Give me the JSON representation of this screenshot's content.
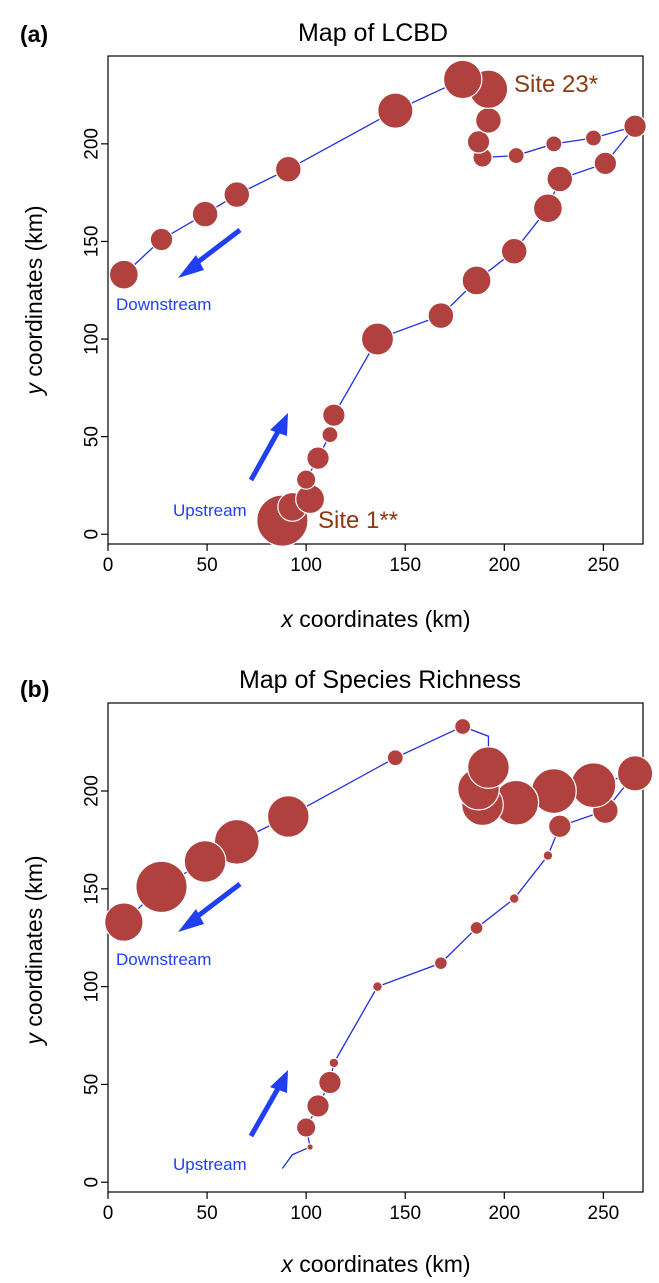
{
  "colors": {
    "point": "#b0413e",
    "line": "#1f2fe0",
    "arrow": "#1f3ff0",
    "site_label": "#8b3a14",
    "direction_label": "#1f3ff0"
  },
  "chart_data": [
    {
      "type": "scatter",
      "panel": "(a)",
      "title": "Map of LCBD",
      "xlabel_italic": "x",
      "xlabel_rest": " coordinates (km)",
      "ylabel_italic": "y",
      "ylabel_rest": " coordinates (km)",
      "xlim": [
        0,
        270
      ],
      "ylim": [
        -5,
        245
      ],
      "xticks": [
        0,
        50,
        100,
        150,
        200,
        250
      ],
      "yticks": [
        0,
        50,
        100,
        150,
        200
      ],
      "size_variable": "LCBD",
      "points": [
        {
          "x": 88,
          "y": 7,
          "size": 16
        },
        {
          "x": 93,
          "y": 14,
          "size": 9
        },
        {
          "x": 102,
          "y": 18,
          "size": 9
        },
        {
          "x": 100,
          "y": 28,
          "size": 6
        },
        {
          "x": 106,
          "y": 39,
          "size": 7
        },
        {
          "x": 112,
          "y": 51,
          "size": 5
        },
        {
          "x": 114,
          "y": 61,
          "size": 7
        },
        {
          "x": 136,
          "y": 100,
          "size": 10
        },
        {
          "x": 168,
          "y": 112,
          "size": 8
        },
        {
          "x": 186,
          "y": 130,
          "size": 9
        },
        {
          "x": 205,
          "y": 145,
          "size": 8
        },
        {
          "x": 222,
          "y": 167,
          "size": 9
        },
        {
          "x": 228,
          "y": 182,
          "size": 8
        },
        {
          "x": 251,
          "y": 190,
          "size": 7
        },
        {
          "x": 266,
          "y": 209,
          "size": 7
        },
        {
          "x": 245,
          "y": 203,
          "size": 5
        },
        {
          "x": 225,
          "y": 200,
          "size": 5
        },
        {
          "x": 206,
          "y": 194,
          "size": 5
        },
        {
          "x": 189,
          "y": 193,
          "size": 6
        },
        {
          "x": 187,
          "y": 201,
          "size": 7
        },
        {
          "x": 192,
          "y": 212,
          "size": 8
        },
        {
          "x": 192,
          "y": 228,
          "size": 12
        },
        {
          "x": 179,
          "y": 233,
          "size": 12
        },
        {
          "x": 145,
          "y": 217,
          "size": 11
        },
        {
          "x": 91,
          "y": 187,
          "size": 8
        },
        {
          "x": 65,
          "y": 174,
          "size": 8
        },
        {
          "x": 49,
          "y": 164,
          "size": 8
        },
        {
          "x": 27,
          "y": 151,
          "size": 7
        },
        {
          "x": 8,
          "y": 133,
          "size": 9
        }
      ],
      "annotations": [
        {
          "text": "Site 23*",
          "x": 207,
          "y": 228
        },
        {
          "text": "Site 1**",
          "x": 103,
          "y": 6
        }
      ],
      "direction_labels": {
        "downstream": "Downstream",
        "upstream": "Upstream"
      }
    },
    {
      "type": "scatter",
      "panel": "(b)",
      "title": "Map of Species Richness",
      "xlabel_italic": "x",
      "xlabel_rest": " coordinates (km)",
      "ylabel_italic": "y",
      "ylabel_rest": " coordinates (km)",
      "xlim": [
        0,
        270
      ],
      "ylim": [
        -5,
        245
      ],
      "xticks": [
        0,
        50,
        100,
        150,
        200,
        250
      ],
      "yticks": [
        0,
        50,
        100,
        150,
        200
      ],
      "size_variable": "species richness",
      "points": [
        {
          "x": 88,
          "y": 7,
          "size": 0
        },
        {
          "x": 93,
          "y": 14,
          "size": 0
        },
        {
          "x": 102,
          "y": 18,
          "size": 2
        },
        {
          "x": 100,
          "y": 28,
          "size": 6
        },
        {
          "x": 106,
          "y": 39,
          "size": 7
        },
        {
          "x": 112,
          "y": 51,
          "size": 7
        },
        {
          "x": 114,
          "y": 61,
          "size": 3
        },
        {
          "x": 136,
          "y": 100,
          "size": 3
        },
        {
          "x": 168,
          "y": 112,
          "size": 4
        },
        {
          "x": 186,
          "y": 130,
          "size": 4
        },
        {
          "x": 205,
          "y": 145,
          "size": 3
        },
        {
          "x": 222,
          "y": 167,
          "size": 3
        },
        {
          "x": 228,
          "y": 182,
          "size": 7
        },
        {
          "x": 251,
          "y": 190,
          "size": 8
        },
        {
          "x": 266,
          "y": 209,
          "size": 11
        },
        {
          "x": 245,
          "y": 203,
          "size": 14
        },
        {
          "x": 225,
          "y": 200,
          "size": 14
        },
        {
          "x": 206,
          "y": 194,
          "size": 14
        },
        {
          "x": 189,
          "y": 193,
          "size": 13
        },
        {
          "x": 187,
          "y": 201,
          "size": 13
        },
        {
          "x": 192,
          "y": 212,
          "size": 13
        },
        {
          "x": 192,
          "y": 228,
          "size": 0
        },
        {
          "x": 179,
          "y": 233,
          "size": 5
        },
        {
          "x": 145,
          "y": 217,
          "size": 5
        },
        {
          "x": 91,
          "y": 187,
          "size": 13
        },
        {
          "x": 65,
          "y": 174,
          "size": 14
        },
        {
          "x": 49,
          "y": 164,
          "size": 13
        },
        {
          "x": 27,
          "y": 151,
          "size": 16
        },
        {
          "x": 8,
          "y": 133,
          "size": 12
        }
      ],
      "annotations": [],
      "direction_labels": {
        "downstream": "Downstream",
        "upstream": "Upstream"
      }
    }
  ]
}
